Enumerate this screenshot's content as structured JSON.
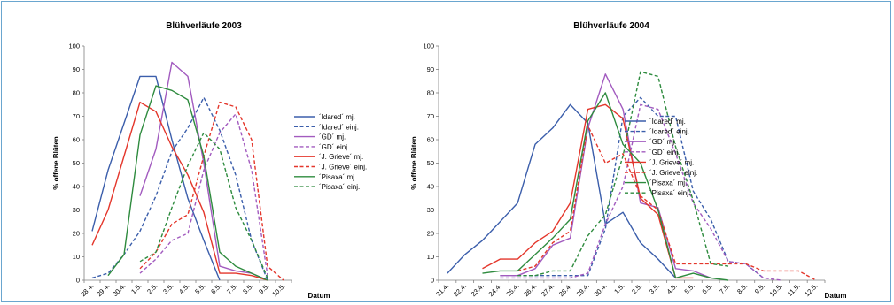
{
  "chart_data": [
    {
      "type": "line",
      "title": "Blühverläufe 2003",
      "xlabel": "Datum",
      "ylabel": "% offene Blüten",
      "ylim": [
        0,
        100
      ],
      "yticks": [
        0,
        10,
        20,
        30,
        40,
        50,
        60,
        70,
        80,
        90,
        100
      ],
      "grid": false,
      "legend_position": "right",
      "categories": [
        "28.4.",
        "29.4.",
        "30.4.",
        "1.5.",
        "2.5.",
        "3.5.",
        "4.5.",
        "5.5.",
        "6.5.",
        "7.5.",
        "8.5.",
        "9.5.",
        "10.5."
      ],
      "series": [
        {
          "name": "´Idared´ mj.",
          "color": "#3b5eab",
          "dash": "solid",
          "values": [
            21,
            47,
            67,
            87,
            87,
            60,
            35,
            17,
            0,
            null,
            null,
            null,
            null
          ]
        },
        {
          "name": "´Idared´ einj.",
          "color": "#3b5eab",
          "dash": "dashed",
          "values": [
            1,
            3,
            11,
            21,
            36,
            55,
            65,
            78,
            64,
            45,
            17,
            0,
            null
          ]
        },
        {
          "name": "´GD´ mj.",
          "color": "#a25bbf",
          "dash": "solid",
          "values": [
            null,
            null,
            null,
            36,
            56,
            93,
            87,
            50,
            6,
            4,
            3,
            0,
            null
          ]
        },
        {
          "name": "´GD´ einj.",
          "color": "#a25bbf",
          "dash": "dashed",
          "values": [
            null,
            null,
            null,
            3,
            9,
            17,
            20,
            47,
            63,
            71,
            47,
            2,
            null
          ]
        },
        {
          "name": "´J. Grieve´ mj.",
          "color": "#e4362b",
          "dash": "solid",
          "values": [
            15,
            30,
            53,
            76,
            72,
            57,
            45,
            29,
            3,
            3,
            2,
            0,
            null
          ]
        },
        {
          "name": "´J. Grieve´ einj.",
          "color": "#e4362b",
          "dash": "dashed",
          "values": [
            null,
            null,
            null,
            5,
            12,
            24,
            28,
            53,
            76,
            74,
            60,
            6,
            0
          ]
        },
        {
          "name": "´Pisaxa´ mj.",
          "color": "#2e8b3e",
          "dash": "solid",
          "values": [
            null,
            2,
            11,
            62,
            83,
            81,
            77,
            53,
            12,
            6,
            3,
            0,
            null
          ]
        },
        {
          "name": "´Pisaxa´ einj.",
          "color": "#2e8b3e",
          "dash": "dashed",
          "values": [
            null,
            null,
            null,
            8,
            12,
            31,
            49,
            63,
            56,
            31,
            17,
            1,
            null
          ]
        }
      ]
    },
    {
      "type": "line",
      "title": "Blühverläufe 2004",
      "xlabel": "Datum",
      "ylabel": "% offene Blüten",
      "ylim": [
        0,
        100
      ],
      "yticks": [
        0,
        10,
        20,
        30,
        40,
        50,
        60,
        70,
        80,
        90,
        100
      ],
      "grid": false,
      "legend_position": "right",
      "categories": [
        "21.4.",
        "22.4.",
        "23.4.",
        "24.4.",
        "25.4.",
        "26.4.",
        "27.4.",
        "28.4.",
        "29.4.",
        "30.4.",
        "1.5.",
        "2.5.",
        "3.5.",
        "4.5.",
        "5.5.",
        "6.5.",
        "7.5.",
        "8.5.",
        "9.5.",
        "10.5.",
        "11.5.",
        "12.5."
      ],
      "series": [
        {
          "name": "´Idared´ mj.",
          "color": "#3b5eab",
          "dash": "solid",
          "values": [
            3,
            11,
            17,
            25,
            33,
            58,
            65,
            75,
            67,
            24,
            29,
            16,
            9,
            1,
            null,
            null,
            null,
            null,
            null,
            null,
            null,
            null
          ]
        },
        {
          "name": "´Idared´ einj.",
          "color": "#3b5eab",
          "dash": "dashed",
          "values": [
            null,
            null,
            null,
            2,
            2,
            2,
            2,
            2,
            2,
            22,
            70,
            78,
            70,
            70,
            38,
            26,
            8,
            7,
            1,
            null,
            null,
            null
          ]
        },
        {
          "name": "´GD´ mj.",
          "color": "#a25bbf",
          "dash": "solid",
          "values": [
            null,
            null,
            null,
            2,
            2,
            5,
            15,
            18,
            65,
            88,
            73,
            33,
            31,
            5,
            4,
            1,
            null,
            null,
            null,
            null,
            null,
            null
          ]
        },
        {
          "name": "´GD´ einj.",
          "color": "#a25bbf",
          "dash": "dashed",
          "values": [
            null,
            null,
            null,
            1,
            1,
            1,
            1,
            1,
            3,
            24,
            40,
            75,
            73,
            54,
            33,
            22,
            8,
            7,
            1,
            0,
            null,
            null
          ]
        },
        {
          "name": "´J. Grieve´ mj.",
          "color": "#e4362b",
          "dash": "solid",
          "values": [
            null,
            null,
            5,
            9,
            9,
            16,
            21,
            33,
            73,
            75,
            69,
            35,
            28,
            1,
            1,
            null,
            null,
            null,
            null,
            null,
            null,
            null
          ]
        },
        {
          "name": "´J. Grieve´ einj.",
          "color": "#e4362b",
          "dash": "dashed",
          "values": [
            null,
            null,
            null,
            null,
            4,
            6,
            16,
            21,
            66,
            50,
            54,
            36,
            30,
            7,
            7,
            7,
            7,
            7,
            4,
            4,
            4,
            0
          ]
        },
        {
          "name": "´Pisaxa´ mj.",
          "color": "#2e8b3e",
          "dash": "solid",
          "values": [
            null,
            null,
            3,
            4,
            4,
            11,
            18,
            26,
            68,
            80,
            58,
            50,
            30,
            1,
            3,
            1,
            0,
            null,
            null,
            null,
            null,
            null
          ]
        },
        {
          "name": "´Pisaxa´ einj.",
          "color": "#2e8b3e",
          "dash": "dashed",
          "values": [
            null,
            null,
            null,
            null,
            2,
            2,
            4,
            4,
            19,
            28,
            53,
            89,
            87,
            57,
            34,
            7,
            6,
            null,
            null,
            null,
            null,
            null
          ]
        }
      ]
    }
  ]
}
